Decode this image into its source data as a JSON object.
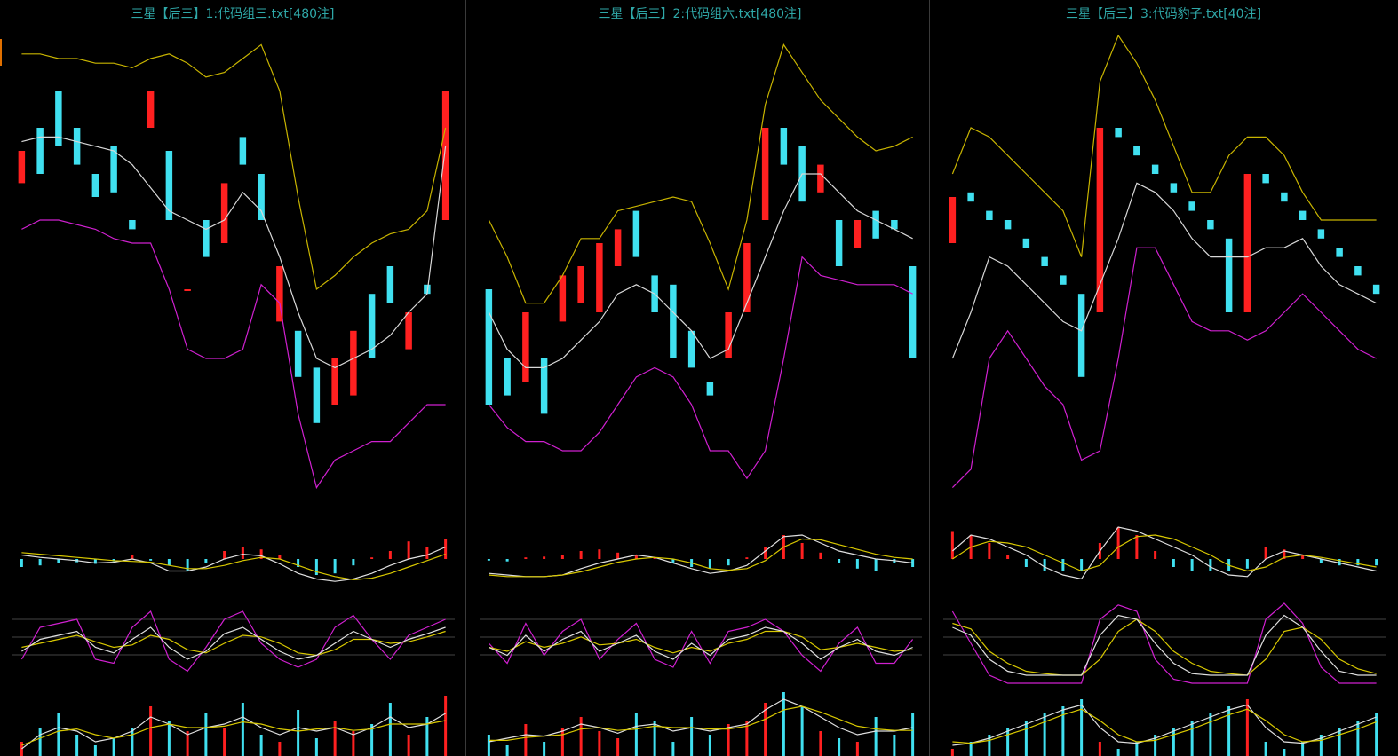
{
  "panels": [
    {
      "title": "三星【后三】1:代码组三.txt[480注]",
      "main": {
        "upper": [
          96,
          96,
          95,
          95,
          94,
          94,
          93,
          95,
          96,
          94,
          91,
          92,
          95,
          98,
          88,
          65,
          45,
          48,
          52,
          55,
          57,
          58,
          62,
          80
        ],
        "middle": [
          77,
          78,
          78,
          77,
          76,
          75,
          72,
          67,
          62,
          60,
          58,
          60,
          66,
          62,
          52,
          40,
          30,
          28,
          30,
          32,
          35,
          40,
          44,
          76
        ],
        "lower": [
          58,
          60,
          60,
          59,
          58,
          56,
          55,
          55,
          45,
          32,
          30,
          30,
          32,
          46,
          42,
          18,
          2,
          8,
          10,
          12,
          12,
          16,
          20,
          20
        ],
        "candles": [
          [
            68,
            75
          ],
          [
            80,
            70
          ],
          [
            88,
            76
          ],
          [
            80,
            72
          ],
          [
            70,
            65
          ],
          [
            76,
            66
          ],
          [
            60,
            58
          ],
          [
            80,
            88
          ],
          [
            75,
            60
          ],
          [
            45,
            45
          ],
          [
            60,
            52
          ],
          [
            55,
            68
          ],
          [
            78,
            72
          ],
          [
            70,
            60
          ],
          [
            38,
            50
          ],
          [
            36,
            26
          ],
          [
            28,
            16
          ],
          [
            20,
            30
          ],
          [
            22,
            36
          ],
          [
            44,
            30
          ],
          [
            50,
            42
          ],
          [
            32,
            40
          ],
          [
            46,
            44
          ],
          [
            60,
            88
          ]
        ]
      },
      "macd": {
        "hist": [
          -10,
          -8,
          -5,
          -4,
          -6,
          -3,
          5,
          -2,
          -8,
          -15,
          -5,
          10,
          15,
          12,
          5,
          -10,
          -20,
          -18,
          -8,
          2,
          10,
          22,
          15,
          25
        ],
        "dif": [
          5,
          2,
          0,
          -2,
          -5,
          -4,
          0,
          -5,
          -15,
          -15,
          -10,
          0,
          6,
          4,
          -6,
          -18,
          -25,
          -28,
          -25,
          -18,
          -8,
          0,
          5,
          15
        ],
        "dea": [
          8,
          6,
          4,
          2,
          0,
          -2,
          -3,
          -4,
          -8,
          -12,
          -12,
          -8,
          -2,
          2,
          0,
          -8,
          -16,
          -22,
          -26,
          -24,
          -18,
          -10,
          -2,
          6
        ]
      },
      "kdj": {
        "k": [
          40,
          55,
          60,
          65,
          45,
          38,
          55,
          70,
          45,
          30,
          40,
          62,
          70,
          55,
          40,
          30,
          35,
          50,
          65,
          55,
          45,
          55,
          62,
          70
        ],
        "d": [
          45,
          50,
          55,
          60,
          52,
          45,
          48,
          60,
          55,
          42,
          38,
          50,
          60,
          58,
          50,
          38,
          35,
          42,
          55,
          55,
          50,
          52,
          58,
          65
        ],
        "j": [
          30,
          70,
          75,
          80,
          30,
          25,
          70,
          90,
          30,
          15,
          45,
          80,
          90,
          50,
          30,
          20,
          30,
          70,
          85,
          55,
          30,
          60,
          70,
          80
        ]
      },
      "vol": {
        "bars": [
          20,
          40,
          60,
          30,
          15,
          25,
          40,
          70,
          50,
          35,
          60,
          40,
          75,
          30,
          20,
          65,
          25,
          50,
          35,
          45,
          75,
          30,
          55,
          85
        ],
        "ma1": [
          10,
          30,
          40,
          35,
          20,
          25,
          35,
          55,
          45,
          30,
          40,
          45,
          55,
          40,
          30,
          40,
          35,
          40,
          30,
          40,
          55,
          40,
          45,
          60
        ],
        "ma2": [
          15,
          25,
          35,
          38,
          30,
          25,
          30,
          40,
          45,
          40,
          40,
          42,
          48,
          45,
          38,
          35,
          38,
          40,
          36,
          38,
          45,
          45,
          45,
          50
        ]
      }
    },
    {
      "title": "三星【后三】2:代码组六.txt[480注]",
      "main": {
        "upper": [
          60,
          52,
          42,
          42,
          48,
          56,
          56,
          62,
          63,
          64,
          65,
          64,
          55,
          45,
          60,
          85,
          98,
          92,
          86,
          82,
          78,
          75,
          76,
          78
        ],
        "middle": [
          40,
          32,
          28,
          28,
          30,
          34,
          38,
          44,
          46,
          44,
          40,
          36,
          30,
          32,
          42,
          52,
          62,
          70,
          70,
          66,
          62,
          60,
          58,
          56
        ],
        "lower": [
          20,
          15,
          12,
          12,
          10,
          10,
          14,
          20,
          26,
          28,
          26,
          20,
          10,
          10,
          4,
          10,
          30,
          52,
          48,
          47,
          46,
          46,
          46,
          44
        ],
        "candles": [
          [
            45,
            20
          ],
          [
            30,
            22
          ],
          [
            25,
            40
          ],
          [
            30,
            18
          ],
          [
            38,
            48
          ],
          [
            42,
            50
          ],
          [
            40,
            55
          ],
          [
            50,
            58
          ],
          [
            62,
            52
          ],
          [
            48,
            40
          ],
          [
            46,
            30
          ],
          [
            36,
            28
          ],
          [
            25,
            22
          ],
          [
            30,
            40
          ],
          [
            40,
            55
          ],
          [
            60,
            80
          ],
          [
            80,
            72
          ],
          [
            76,
            64
          ],
          [
            66,
            72
          ],
          [
            60,
            50
          ],
          [
            54,
            60
          ],
          [
            62,
            56
          ],
          [
            60,
            58
          ],
          [
            50,
            30
          ]
        ]
      },
      "macd": {
        "hist": [
          -2,
          -3,
          2,
          3,
          5,
          10,
          12,
          8,
          5,
          2,
          -5,
          -10,
          -12,
          -8,
          2,
          15,
          30,
          20,
          8,
          -5,
          -12,
          -15,
          -5,
          -10
        ],
        "dif": [
          -18,
          -20,
          -22,
          -22,
          -20,
          -12,
          -5,
          0,
          5,
          2,
          -5,
          -12,
          -18,
          -15,
          -8,
          10,
          28,
          30,
          20,
          10,
          5,
          0,
          -2,
          -5
        ],
        "dea": [
          -20,
          -22,
          -22,
          -22,
          -20,
          -16,
          -10,
          -4,
          0,
          2,
          0,
          -5,
          -12,
          -14,
          -12,
          -2,
          15,
          25,
          24,
          18,
          12,
          6,
          2,
          0
        ]
      },
      "kdj": {
        "k": [
          45,
          35,
          60,
          40,
          55,
          65,
          40,
          50,
          60,
          40,
          30,
          50,
          35,
          55,
          60,
          70,
          65,
          50,
          30,
          45,
          55,
          40,
          35,
          45
        ],
        "d": [
          45,
          40,
          52,
          45,
          50,
          58,
          48,
          50,
          55,
          45,
          38,
          45,
          40,
          50,
          55,
          65,
          65,
          58,
          42,
          45,
          50,
          45,
          40,
          42
        ],
        "j": [
          50,
          25,
          75,
          35,
          65,
          80,
          30,
          55,
          75,
          30,
          20,
          65,
          25,
          65,
          70,
          80,
          65,
          35,
          15,
          50,
          70,
          25,
          25,
          55
        ]
      },
      "vol": {
        "bars": [
          30,
          15,
          45,
          20,
          40,
          55,
          35,
          25,
          60,
          50,
          20,
          55,
          30,
          45,
          50,
          75,
          90,
          70,
          35,
          25,
          20,
          55,
          30,
          60
        ],
        "ma1": [
          20,
          25,
          30,
          28,
          35,
          45,
          40,
          32,
          42,
          45,
          35,
          40,
          35,
          40,
          45,
          65,
          80,
          70,
          55,
          40,
          30,
          35,
          35,
          40
        ],
        "ma2": [
          22,
          22,
          26,
          28,
          30,
          38,
          40,
          36,
          38,
          42,
          40,
          40,
          38,
          38,
          42,
          52,
          65,
          70,
          62,
          52,
          42,
          38,
          36,
          36
        ]
      }
    },
    {
      "title": "三星【后三】3:代码豹子.txt[40注]",
      "main": {
        "upper": [
          70,
          80,
          78,
          74,
          70,
          66,
          62,
          52,
          90,
          100,
          94,
          86,
          76,
          66,
          66,
          74,
          78,
          78,
          74,
          66,
          60,
          60,
          60,
          60
        ],
        "middle": [
          30,
          40,
          52,
          50,
          46,
          42,
          38,
          36,
          46,
          56,
          68,
          66,
          62,
          56,
          52,
          52,
          52,
          54,
          54,
          56,
          50,
          46,
          44,
          42
        ],
        "lower": [
          2,
          6,
          30,
          36,
          30,
          24,
          20,
          8,
          10,
          30,
          54,
          54,
          46,
          38,
          36,
          36,
          34,
          36,
          40,
          44,
          40,
          36,
          32,
          30
        ],
        "candles": [
          [
            55,
            65
          ],
          [
            66,
            64
          ],
          [
            62,
            60
          ],
          [
            60,
            58
          ],
          [
            56,
            54
          ],
          [
            52,
            50
          ],
          [
            48,
            46
          ],
          [
            44,
            26
          ],
          [
            40,
            80
          ],
          [
            80,
            78
          ],
          [
            76,
            74
          ],
          [
            72,
            70
          ],
          [
            68,
            66
          ],
          [
            64,
            62
          ],
          [
            60,
            58
          ],
          [
            56,
            40
          ],
          [
            40,
            70
          ],
          [
            70,
            68
          ],
          [
            66,
            64
          ],
          [
            62,
            60
          ],
          [
            58,
            56
          ],
          [
            54,
            52
          ],
          [
            50,
            48
          ],
          [
            46,
            44
          ]
        ]
      },
      "macd": {
        "hist": [
          35,
          30,
          20,
          5,
          -10,
          -15,
          -15,
          -15,
          20,
          40,
          30,
          10,
          -10,
          -15,
          -15,
          -15,
          -12,
          15,
          12,
          5,
          -5,
          -8,
          -8,
          -8
        ],
        "dif": [
          10,
          30,
          25,
          15,
          5,
          -10,
          -20,
          -25,
          10,
          40,
          35,
          25,
          15,
          5,
          -10,
          -20,
          -22,
          0,
          10,
          5,
          0,
          -5,
          -10,
          -15
        ],
        "dea": [
          0,
          15,
          22,
          20,
          15,
          5,
          -5,
          -15,
          -8,
          15,
          28,
          30,
          25,
          15,
          5,
          -8,
          -15,
          -10,
          2,
          5,
          2,
          -2,
          -6,
          -10
        ]
      },
      "kdj": {
        "k": [
          70,
          60,
          30,
          15,
          10,
          10,
          10,
          10,
          60,
          85,
          80,
          50,
          25,
          12,
          10,
          10,
          10,
          60,
          85,
          70,
          40,
          15,
          10,
          10
        ],
        "d": [
          75,
          68,
          40,
          25,
          15,
          12,
          10,
          10,
          30,
          65,
          80,
          65,
          40,
          25,
          15,
          12,
          10,
          30,
          65,
          70,
          55,
          30,
          18,
          12
        ],
        "j": [
          90,
          50,
          10,
          0,
          0,
          0,
          0,
          0,
          80,
          98,
          90,
          30,
          5,
          0,
          0,
          0,
          0,
          80,
          100,
          75,
          20,
          0,
          0,
          0
        ]
      },
      "vol": {
        "bars": [
          10,
          20,
          30,
          40,
          50,
          60,
          70,
          80,
          20,
          10,
          20,
          30,
          40,
          50,
          60,
          70,
          80,
          20,
          10,
          20,
          30,
          40,
          50,
          60
        ],
        "ma1": [
          15,
          18,
          25,
          35,
          45,
          55,
          65,
          72,
          40,
          20,
          18,
          25,
          35,
          45,
          55,
          65,
          72,
          40,
          20,
          18,
          25,
          35,
          45,
          55
        ],
        "ma2": [
          20,
          18,
          22,
          30,
          38,
          48,
          58,
          66,
          50,
          30,
          20,
          22,
          30,
          38,
          48,
          58,
          66,
          50,
          30,
          20,
          22,
          30,
          38,
          48
        ]
      }
    }
  ]
}
